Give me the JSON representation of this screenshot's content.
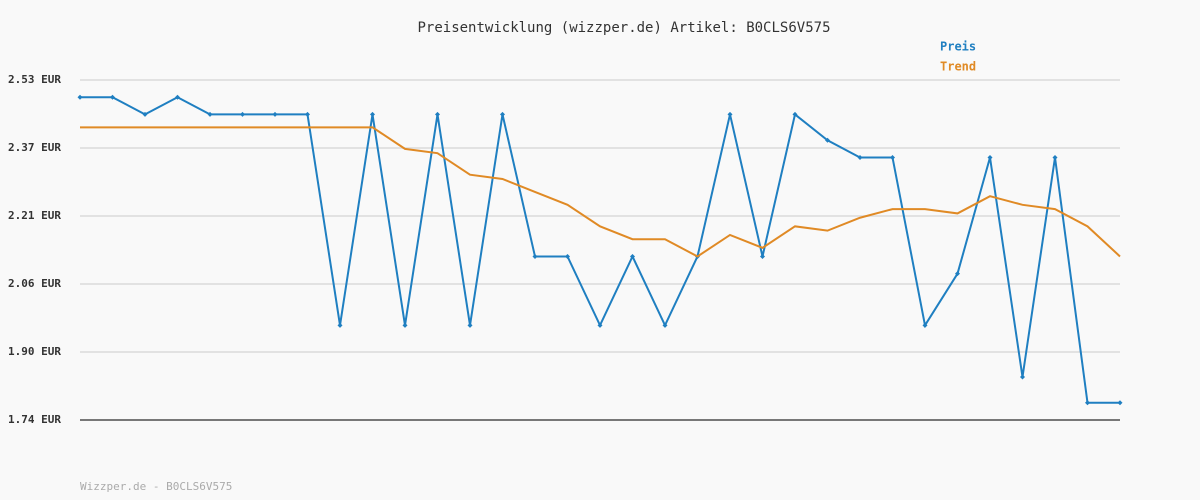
{
  "chart_data": {
    "type": "line",
    "title": "Preisentwicklung (wizzper.de) Artikel: B0CLS6V575",
    "categories": [
      null,
      null,
      null,
      null,
      null,
      null,
      null,
      null,
      null,
      null,
      null,
      null,
      null,
      null,
      null,
      null,
      null,
      null,
      null,
      null,
      null,
      null,
      null,
      null,
      null,
      null,
      null,
      null,
      null,
      null,
      null,
      null,
      null
    ],
    "series": [
      {
        "name": "Preis",
        "color": "#1f7fc1",
        "markers": true,
        "values": [
          2.49,
          2.49,
          2.45,
          2.49,
          2.45,
          2.45,
          2.45,
          2.45,
          1.96,
          2.45,
          1.96,
          2.45,
          1.96,
          2.45,
          2.12,
          2.12,
          1.96,
          2.12,
          1.96,
          2.12,
          2.45,
          2.12,
          2.45,
          2.39,
          2.35,
          2.35,
          1.96,
          2.08,
          2.35,
          1.84,
          2.35,
          1.78,
          1.78
        ]
      },
      {
        "name": "Trend",
        "color": "#e08a25",
        "markers": false,
        "values": [
          2.42,
          2.42,
          2.42,
          2.42,
          2.42,
          2.42,
          2.42,
          2.42,
          2.42,
          2.42,
          2.37,
          2.36,
          2.31,
          2.3,
          2.27,
          2.24,
          2.19,
          2.16,
          2.16,
          2.12,
          2.17,
          2.14,
          2.19,
          2.18,
          2.21,
          2.23,
          2.23,
          2.22,
          2.26,
          2.24,
          2.23,
          2.19,
          2.12
        ]
      }
    ],
    "ylim": [
      1.74,
      2.53
    ],
    "yticks": [
      {
        "value": 1.74,
        "label": "1.74 EUR"
      },
      {
        "value": 1.898,
        "label": "1.90 EUR"
      },
      {
        "value": 2.056,
        "label": "2.06 EUR"
      },
      {
        "value": 2.214,
        "label": "2.21 EUR"
      },
      {
        "value": 2.372,
        "label": "2.37 EUR"
      },
      {
        "value": 2.53,
        "label": "2.53 EUR"
      }
    ],
    "grid": true,
    "legend": "top-right"
  },
  "footer": "Wizzper.de - B0CLS6V575"
}
